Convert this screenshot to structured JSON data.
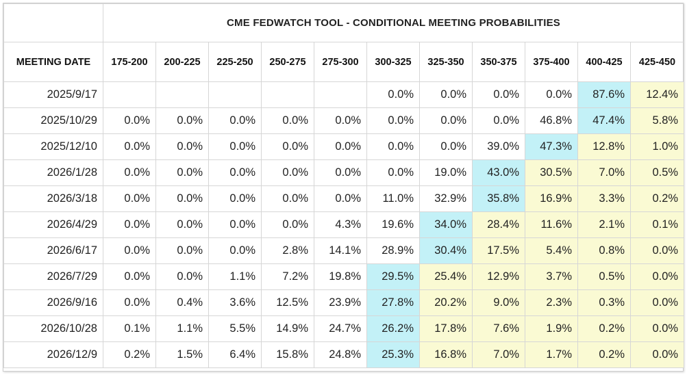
{
  "title": "CME FEDWATCH TOOL - CONDITIONAL MEETING PROBABILITIES",
  "date_header": "MEETING DATE",
  "chart_data": {
    "type": "table",
    "title": "CME FEDWATCH TOOL - CONDITIONAL MEETING PROBABILITIES",
    "row_header": "MEETING DATE",
    "columns": [
      "175-200",
      "200-225",
      "225-250",
      "250-275",
      "275-300",
      "300-325",
      "325-350",
      "350-375",
      "375-400",
      "400-425",
      "425-450"
    ],
    "rows": [
      {
        "date": "2025/9/17",
        "values": [
          "",
          "",
          "",
          "",
          "",
          "0.0%",
          "0.0%",
          "0.0%",
          "0.0%",
          "87.6%",
          "12.4%"
        ],
        "max": 9,
        "hi": [
          10
        ]
      },
      {
        "date": "2025/10/29",
        "values": [
          "0.0%",
          "0.0%",
          "0.0%",
          "0.0%",
          "0.0%",
          "0.0%",
          "0.0%",
          "0.0%",
          "46.8%",
          "47.4%",
          "5.8%"
        ],
        "max": 9,
        "hi": [
          10
        ]
      },
      {
        "date": "2025/12/10",
        "values": [
          "0.0%",
          "0.0%",
          "0.0%",
          "0.0%",
          "0.0%",
          "0.0%",
          "0.0%",
          "39.0%",
          "47.3%",
          "12.8%",
          "1.0%"
        ],
        "max": 8,
        "hi": [
          9,
          10
        ]
      },
      {
        "date": "2026/1/28",
        "values": [
          "0.0%",
          "0.0%",
          "0.0%",
          "0.0%",
          "0.0%",
          "0.0%",
          "19.0%",
          "43.0%",
          "30.5%",
          "7.0%",
          "0.5%"
        ],
        "max": 7,
        "hi": [
          8,
          9,
          10
        ]
      },
      {
        "date": "2026/3/18",
        "values": [
          "0.0%",
          "0.0%",
          "0.0%",
          "0.0%",
          "0.0%",
          "11.0%",
          "32.9%",
          "35.8%",
          "16.9%",
          "3.3%",
          "0.2%"
        ],
        "max": 7,
        "hi": [
          8,
          9,
          10
        ]
      },
      {
        "date": "2026/4/29",
        "values": [
          "0.0%",
          "0.0%",
          "0.0%",
          "0.0%",
          "4.3%",
          "19.6%",
          "34.0%",
          "28.4%",
          "11.6%",
          "2.1%",
          "0.1%"
        ],
        "max": 6,
        "hi": [
          7,
          8,
          9,
          10
        ]
      },
      {
        "date": "2026/6/17",
        "values": [
          "0.0%",
          "0.0%",
          "0.0%",
          "2.8%",
          "14.1%",
          "28.9%",
          "30.4%",
          "17.5%",
          "5.4%",
          "0.8%",
          "0.0%"
        ],
        "max": 6,
        "hi": [
          7,
          8,
          9,
          10
        ]
      },
      {
        "date": "2026/7/29",
        "values": [
          "0.0%",
          "0.0%",
          "1.1%",
          "7.2%",
          "19.8%",
          "29.5%",
          "25.4%",
          "12.9%",
          "3.7%",
          "0.5%",
          "0.0%"
        ],
        "max": 5,
        "hi": [
          6,
          7,
          8,
          9,
          10
        ]
      },
      {
        "date": "2026/9/16",
        "values": [
          "0.0%",
          "0.4%",
          "3.6%",
          "12.5%",
          "23.9%",
          "27.8%",
          "20.2%",
          "9.0%",
          "2.3%",
          "0.3%",
          "0.0%"
        ],
        "max": 5,
        "hi": [
          6,
          7,
          8,
          9,
          10
        ]
      },
      {
        "date": "2026/10/28",
        "values": [
          "0.1%",
          "1.1%",
          "5.5%",
          "14.9%",
          "24.7%",
          "26.2%",
          "17.8%",
          "7.6%",
          "1.9%",
          "0.2%",
          "0.0%"
        ],
        "max": 5,
        "hi": [
          6,
          7,
          8,
          9,
          10
        ]
      },
      {
        "date": "2026/12/9",
        "values": [
          "0.2%",
          "1.5%",
          "6.4%",
          "15.8%",
          "24.8%",
          "25.3%",
          "16.8%",
          "7.0%",
          "1.7%",
          "0.2%",
          "0.0%"
        ],
        "max": 5,
        "hi": [
          6,
          7,
          8,
          9,
          10
        ]
      }
    ]
  }
}
